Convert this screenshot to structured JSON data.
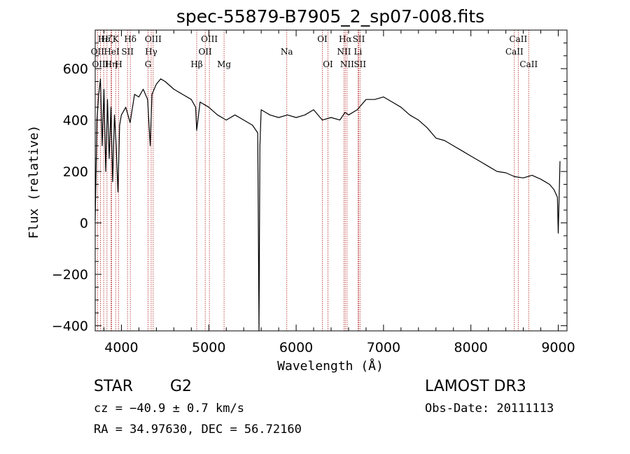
{
  "chart_data": {
    "type": "line",
    "title": "spec-55879-B7905_2_sp07-008.fits",
    "xlabel": "Wavelength (Å)",
    "ylabel": "Flux (relative)",
    "xlim": [
      3700,
      9100
    ],
    "ylim": [
      -420,
      750
    ],
    "xticks": [
      4000,
      5000,
      6000,
      7000,
      8000,
      9000
    ],
    "yticks": [
      -400,
      -200,
      0,
      200,
      400,
      600
    ],
    "xtick_labels": [
      "4000",
      "5000",
      "6000",
      "7000",
      "8000",
      "9000"
    ],
    "ytick_labels": [
      "−400",
      "−200",
      "0",
      "200",
      "400",
      "600"
    ],
    "series": [
      {
        "name": "flux",
        "x": [
          3700,
          3720,
          3740,
          3760,
          3780,
          3800,
          3820,
          3840,
          3860,
          3880,
          3900,
          3920,
          3940,
          3960,
          3980,
          4000,
          4050,
          4100,
          4150,
          4200,
          4250,
          4300,
          4330,
          4350,
          4400,
          4450,
          4500,
          4600,
          4700,
          4800,
          4850,
          4862,
          4900,
          5000,
          5100,
          5200,
          5300,
          5400,
          5500,
          5560,
          5575,
          5585,
          5600,
          5700,
          5800,
          5900,
          6000,
          6100,
          6200,
          6300,
          6400,
          6500,
          6560,
          6600,
          6700,
          6800,
          6900,
          7000,
          7100,
          7200,
          7300,
          7400,
          7500,
          7600,
          7700,
          7800,
          7900,
          8000,
          8100,
          8200,
          8300,
          8400,
          8500,
          8600,
          8700,
          8800,
          8850,
          8900,
          8950,
          8990,
          9000,
          9020
        ],
        "y": [
          10,
          400,
          500,
          560,
          300,
          520,
          200,
          480,
          250,
          450,
          160,
          420,
          300,
          120,
          380,
          420,
          450,
          390,
          500,
          490,
          520,
          480,
          300,
          500,
          540,
          560,
          550,
          520,
          500,
          480,
          450,
          360,
          470,
          450,
          420,
          400,
          420,
          400,
          380,
          350,
          -420,
          300,
          440,
          420,
          410,
          420,
          410,
          420,
          440,
          400,
          410,
          400,
          430,
          420,
          440,
          480,
          480,
          490,
          470,
          450,
          420,
          400,
          370,
          330,
          320,
          300,
          280,
          260,
          240,
          220,
          200,
          195,
          180,
          175,
          185,
          170,
          160,
          150,
          130,
          100,
          -40,
          240
        ],
        "color": "#000000"
      }
    ],
    "lines": [
      {
        "name": "Hε",
        "x": 3797,
        "row": 0
      },
      {
        "name": "OII",
        "x": 3727,
        "row": 1
      },
      {
        "name": "OIII",
        "x": 3760,
        "row": 2
      },
      {
        "name": "Hζ",
        "x": 3835,
        "row": 0
      },
      {
        "name": "HeI",
        "x": 3889,
        "row": 1
      },
      {
        "name": "Hη",
        "x": 3880,
        "row": 2
      },
      {
        "name": "K",
        "x": 3934,
        "row": 0
      },
      {
        "name": "SII",
        "x": 4070,
        "row": 1
      },
      {
        "name": "H",
        "x": 3969,
        "row": 2
      },
      {
        "name": "Hδ",
        "x": 4102,
        "row": 0
      },
      {
        "name": "OIII",
        "x": 4364,
        "row": 0
      },
      {
        "name": "Hγ",
        "x": 4341,
        "row": 1
      },
      {
        "name": "G",
        "x": 4305,
        "row": 2
      },
      {
        "name": "OIII",
        "x": 5007,
        "row": 0
      },
      {
        "name": "OII",
        "x": 4959,
        "row": 1
      },
      {
        "name": "Hβ",
        "x": 4862,
        "row": 2
      },
      {
        "name": "Mg",
        "x": 5175,
        "row": 2
      },
      {
        "name": "Na",
        "x": 5893,
        "row": 1
      },
      {
        "name": "OI",
        "x": 6300,
        "row": 0
      },
      {
        "name": "OI",
        "x": 6364,
        "row": 2
      },
      {
        "name": "Hα",
        "x": 6563,
        "row": 0
      },
      {
        "name": "NII",
        "x": 6548,
        "row": 1
      },
      {
        "name": "NII",
        "x": 6583,
        "row": 2
      },
      {
        "name": "SII",
        "x": 6717,
        "row": 0
      },
      {
        "name": "Li",
        "x": 6708,
        "row": 1
      },
      {
        "name": "SII",
        "x": 6731,
        "row": 2
      },
      {
        "name": "CaII",
        "x": 8542,
        "row": 0
      },
      {
        "name": "CaII",
        "x": 8498,
        "row": 1
      },
      {
        "name": "CaII",
        "x": 8662,
        "row": 2
      }
    ]
  },
  "info": {
    "object_class": "STAR",
    "subclass": "G2",
    "cz": "cz = −40.9 ± 0.7 km/s",
    "radec": "RA =  34.97630, DEC =  56.72160",
    "survey": "LAMOST DR3",
    "obs_date": "Obs-Date: 20111113"
  }
}
